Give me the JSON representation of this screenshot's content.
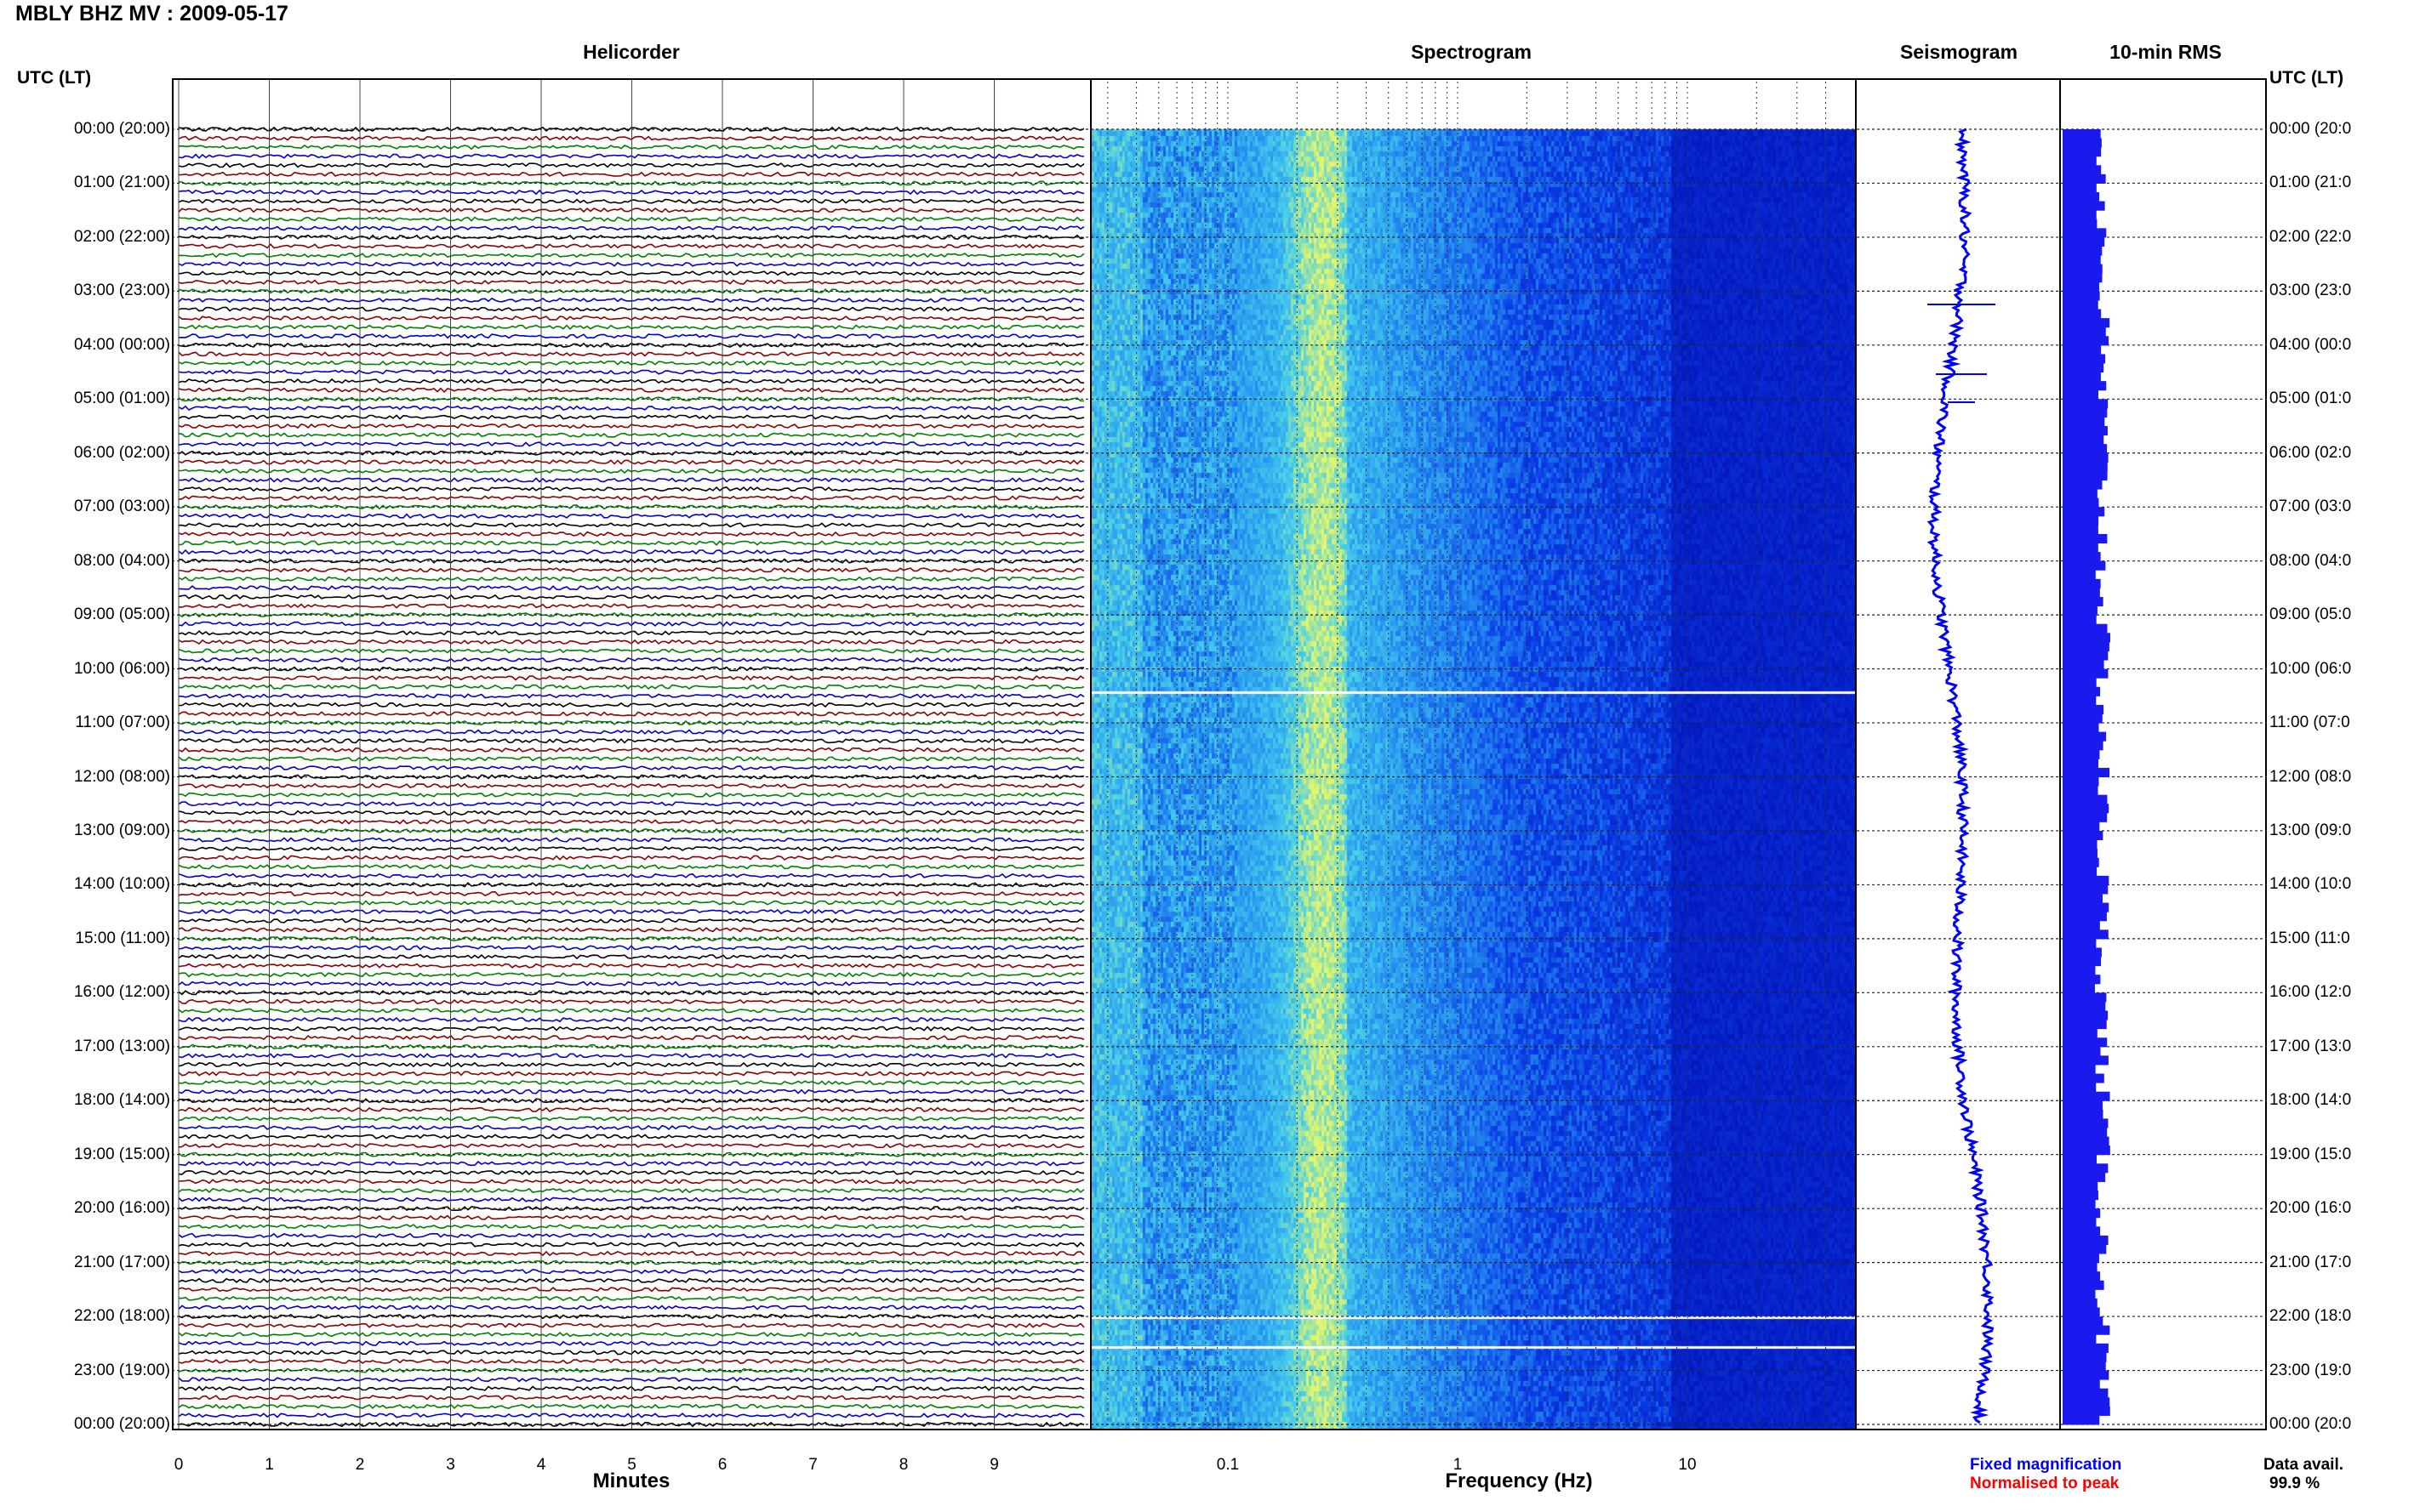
{
  "header": {
    "title": "MBLY BHZ MV : 2009-05-17",
    "utc_left": "UTC (LT)",
    "utc_right": "UTC (LT)"
  },
  "panels": {
    "helicorder": "Helicorder",
    "spectrogram": "Spectrogram",
    "seismogram": "Seismogram",
    "rms": "10-min RMS"
  },
  "time_labels": [
    "00:00 (20:00)",
    "01:00 (21:00)",
    "02:00 (22:00)",
    "03:00 (23:00)",
    "04:00 (00:00)",
    "05:00 (01:00)",
    "06:00 (02:00)",
    "07:00 (03:00)",
    "08:00 (04:00)",
    "09:00 (05:00)",
    "10:00 (06:00)",
    "11:00 (07:00)",
    "12:00 (08:00)",
    "13:00 (09:00)",
    "14:00 (10:00)",
    "15:00 (11:00)",
    "16:00 (12:00)",
    "17:00 (13:00)",
    "18:00 (14:00)",
    "19:00 (15:00)",
    "20:00 (16:00)",
    "21:00 (17:00)",
    "22:00 (18:00)",
    "23:00 (19:00)",
    "00:00 (20:00)"
  ],
  "time_labels_right": [
    "00:00 (20:0",
    "01:00 (21:0",
    "02:00 (22:0",
    "03:00 (23:0",
    "04:00 (00:0",
    "05:00 (01:0",
    "06:00 (02:0",
    "07:00 (03:0",
    "08:00 (04:0",
    "09:00 (05:0",
    "10:00 (06:0",
    "11:00 (07:0",
    "12:00 (08:0",
    "13:00 (09:0",
    "14:00 (10:0",
    "15:00 (11:0",
    "16:00 (12:0",
    "17:00 (13:0",
    "18:00 (14:0",
    "19:00 (15:0",
    "20:00 (16:0",
    "21:00 (17:0",
    "22:00 (18:0",
    "23:00 (19:0",
    "00:00 (20:0"
  ],
  "helicorder_axis": {
    "ticks": [
      "0",
      "1",
      "2",
      "3",
      "4",
      "5",
      "6",
      "7",
      "8",
      "9"
    ],
    "label": "Minutes",
    "trace_colors": [
      "#000000",
      "#8b0000",
      "#008000",
      "#0000cd"
    ]
  },
  "spectrogram_axis": {
    "ticks": [
      "0.1",
      "1",
      "10"
    ],
    "label": "Frequency (Hz)",
    "scale": "log"
  },
  "legend": {
    "fixed": "Fixed magnification",
    "fixed_color": "#0000ff",
    "normalised": "Normalised to peak",
    "normalised_color": "#ff0000"
  },
  "data_avail": {
    "label": "Data avail.",
    "value": "99.9 %"
  },
  "colors": {
    "spectro_dark": "#0000b4",
    "spectro_mid": "#1e78f0",
    "spectro_cyan": "#46c8f0",
    "spectro_yellow": "#e6f564",
    "seis_blue": "#0000ff",
    "rms_blue": "#1a1aee"
  }
}
